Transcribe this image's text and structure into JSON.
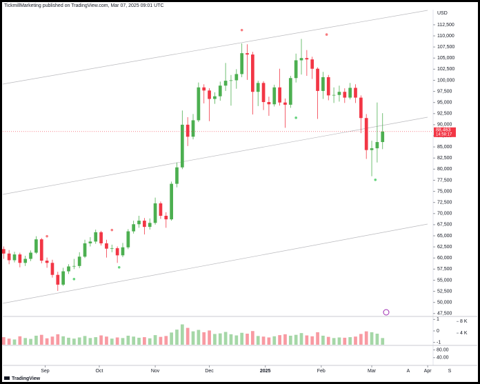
{
  "header": "TickmillMarketing published on TradingView.com, Mar 07, 2025 09:01 UTC",
  "logo": "TradingView",
  "chart_data": {
    "type": "candlestick",
    "currency": "USD",
    "up_color": "#4caf50",
    "down_color": "#f23645",
    "x": [
      -23,
      -20,
      -17,
      -14,
      -11,
      -8,
      -5,
      -2,
      1,
      4,
      7,
      10,
      13,
      16,
      19,
      22,
      25,
      28,
      31,
      34,
      37,
      40,
      43,
      46,
      49,
      52,
      55,
      58,
      61,
      64,
      67,
      70,
      73,
      76,
      79,
      82,
      85,
      88,
      91,
      94,
      97,
      100,
      103,
      106,
      109,
      112,
      115,
      118,
      121,
      124,
      127,
      130,
      133,
      136,
      139,
      142,
      145,
      148,
      151,
      154,
      157,
      160,
      163,
      166,
      169,
      172,
      175,
      178,
      181,
      184,
      187
    ],
    "ohlc": [
      [
        62000,
        62600,
        59800,
        61000
      ],
      [
        61000,
        61800,
        58600,
        59500
      ],
      [
        59500,
        61400,
        59000,
        60800
      ],
      [
        60800,
        61200,
        57900,
        58900
      ],
      [
        58900,
        60500,
        58200,
        59800
      ],
      [
        59800,
        61700,
        59300,
        61200
      ],
      [
        61200,
        64900,
        60900,
        64200
      ],
      [
        64200,
        64500,
        58800,
        59400
      ],
      [
        59400,
        60100,
        57800,
        58900
      ],
      [
        58900,
        59600,
        55600,
        56200
      ],
      [
        56200,
        56900,
        52600,
        54000
      ],
      [
        54000,
        57800,
        53700,
        57000
      ],
      [
        57000,
        58600,
        56400,
        58100
      ],
      [
        58100,
        59800,
        57500,
        58200
      ],
      [
        58200,
        61300,
        57700,
        60300
      ],
      [
        60300,
        64100,
        60000,
        63300
      ],
      [
        63300,
        64700,
        62600,
        63700
      ],
      [
        63700,
        66400,
        63200,
        65800
      ],
      [
        65800,
        66100,
        62800,
        63300
      ],
      [
        63300,
        64100,
        60100,
        62100
      ],
      [
        62100,
        63000,
        61300,
        62200
      ],
      [
        62200,
        62600,
        58900,
        60600
      ],
      [
        60600,
        63400,
        60200,
        62400
      ],
      [
        62400,
        66500,
        62000,
        66000
      ],
      [
        66000,
        68400,
        65500,
        67600
      ],
      [
        67600,
        69500,
        66800,
        68400
      ],
      [
        68400,
        69000,
        65300,
        67000
      ],
      [
        67000,
        68900,
        66400,
        67900
      ],
      [
        67900,
        73600,
        67500,
        72300
      ],
      [
        72300,
        72700,
        68800,
        69500
      ],
      [
        69500,
        70300,
        66800,
        68700
      ],
      [
        68700,
        77200,
        68400,
        76700
      ],
      [
        76700,
        81500,
        75900,
        80400
      ],
      [
        80400,
        93200,
        80000,
        90000
      ],
      [
        90000,
        91700,
        85200,
        87300
      ],
      [
        87300,
        92400,
        86700,
        91000
      ],
      [
        91000,
        99500,
        90600,
        98400
      ],
      [
        98400,
        99100,
        94800,
        97700
      ],
      [
        97700,
        98200,
        90800,
        95800
      ],
      [
        95800,
        97300,
        94700,
        96400
      ],
      [
        96400,
        99700,
        95400,
        98800
      ],
      [
        98800,
        103900,
        97600,
        99900
      ],
      [
        99900,
        101200,
        94300,
        100000
      ],
      [
        100000,
        102500,
        98100,
        101400
      ],
      [
        101400,
        108300,
        100700,
        106100
      ],
      [
        106100,
        108100,
        100100,
        105800
      ],
      [
        105800,
        106400,
        92300,
        97400
      ],
      [
        97400,
        99900,
        94200,
        99400
      ],
      [
        99400,
        99800,
        93300,
        95100
      ],
      [
        95100,
        96300,
        92000,
        94600
      ],
      [
        94600,
        99000,
        94100,
        98400
      ],
      [
        98400,
        102600,
        94300,
        95000
      ],
      [
        95000,
        95900,
        89300,
        94500
      ],
      [
        94500,
        101000,
        93800,
        100500
      ],
      [
        100500,
        106000,
        99500,
        104500
      ],
      [
        104500,
        109300,
        101300,
        105000
      ],
      [
        105000,
        106800,
        101000,
        104700
      ],
      [
        104700,
        105300,
        100300,
        102600
      ],
      [
        102600,
        102900,
        91300,
        97600
      ],
      [
        97600,
        101900,
        95800,
        100700
      ],
      [
        100700,
        101200,
        95500,
        96600
      ],
      [
        96600,
        98400,
        94900,
        96700
      ],
      [
        96700,
        98800,
        95200,
        97400
      ],
      [
        97400,
        98200,
        94900,
        96100
      ],
      [
        96100,
        99400,
        95700,
        98300
      ],
      [
        98300,
        99100,
        94900,
        96100
      ],
      [
        96100,
        96600,
        88100,
        91500
      ],
      [
        91500,
        92400,
        82300,
        84300
      ],
      [
        84300,
        86400,
        78400,
        84700
      ],
      [
        84700,
        95000,
        81500,
        86100
      ],
      [
        86100,
        92600,
        84500,
        88463
      ]
    ],
    "xlim": [
      -23.5,
      215
    ],
    "xticks": [
      {
        "value": 0,
        "label": "Sep"
      },
      {
        "value": 30,
        "label": "Oct"
      },
      {
        "value": 61,
        "label": "Nov"
      },
      {
        "value": 91,
        "label": "Dec"
      },
      {
        "value": 122,
        "label": "2025"
      },
      {
        "value": 153,
        "label": "Feb"
      },
      {
        "value": 181,
        "label": "Mar"
      },
      {
        "value": 212,
        "label": "Apr"
      }
    ],
    "ylim": [
      47000,
      115900
    ],
    "yticks": [
      {
        "value": 112500,
        "label": "112,500"
      },
      {
        "value": 110000,
        "label": "110,000"
      },
      {
        "value": 107500,
        "label": "107,500"
      },
      {
        "value": 105000,
        "label": "105,000"
      },
      {
        "value": 102500,
        "label": "102,500"
      },
      {
        "value": 100000,
        "label": "100,000"
      },
      {
        "value": 97500,
        "label": "97,500"
      },
      {
        "value": 95000,
        "label": "95,000"
      },
      {
        "value": 92500,
        "label": "92,500"
      },
      {
        "value": 90000,
        "label": "90,000"
      },
      {
        "value": 87500,
        "label": "87,500"
      },
      {
        "value": 85000,
        "label": "85,000"
      },
      {
        "value": 82500,
        "label": "82,500"
      },
      {
        "value": 80000,
        "label": "80,000"
      },
      {
        "value": 77500,
        "label": "77,500"
      },
      {
        "value": 75000,
        "label": "75,000"
      },
      {
        "value": 72500,
        "label": "72,500"
      },
      {
        "value": 70000,
        "label": "70,000"
      },
      {
        "value": 67500,
        "label": "67,500"
      },
      {
        "value": 65000,
        "label": "65,000"
      },
      {
        "value": 62500,
        "label": "62,500"
      },
      {
        "value": 60000,
        "label": "60,000"
      },
      {
        "value": 57500,
        "label": "57,500"
      },
      {
        "value": 55000,
        "label": "55,000"
      },
      {
        "value": 52500,
        "label": "52,500"
      },
      {
        "value": 50000,
        "label": "50,000"
      },
      {
        "value": 47500,
        "label": "47,500"
      }
    ],
    "last_price": {
      "value": 88463,
      "label": "88,463"
    },
    "countdown": "14:58:17",
    "fractal_high": {
      "color": "#f77c80",
      "x": [
        1,
        37,
        109,
        156
      ],
      "y": [
        64900,
        66300,
        111300,
        110300
      ]
    },
    "fractal_low": {
      "color": "#66d37e",
      "x": [
        16,
        41,
        139,
        183
      ],
      "y": [
        55250,
        57900,
        91560,
        77600
      ]
    },
    "volume": {
      "values": [
        2600,
        2100,
        1800,
        2900,
        2300,
        2000,
        3100,
        3400,
        2200,
        2800,
        3600,
        2900,
        2400,
        2100,
        2500,
        3000,
        2300,
        2600,
        3200,
        2800,
        2100,
        2500,
        2300,
        3100,
        2800,
        2400,
        2600,
        2200,
        3300,
        2700,
        3000,
        4200,
        5200,
        7000,
        5800,
        4600,
        5100,
        4300,
        4900,
        3700,
        3900,
        4400,
        3600,
        3200,
        4100,
        3800,
        4700,
        3000,
        2800,
        2500,
        2900,
        3300,
        3600,
        3100,
        3400,
        4000,
        3200,
        2900,
        4300,
        3100,
        2700,
        2300,
        2500,
        2400,
        2600,
        2800,
        3700,
        4600,
        4300,
        3800,
        2300
      ],
      "ylim": [
        0,
        9500
      ],
      "yticks": [
        {
          "value": 8000,
          "label": "8 K"
        },
        {
          "value": 4000,
          "label": "4 K"
        }
      ]
    },
    "oscillator": {
      "ylim": [
        -1.2,
        1.2
      ],
      "yticks": [
        1,
        0,
        -1
      ]
    },
    "lower_pane": {
      "ylim": [
        0,
        100
      ],
      "yticks": [
        {
          "value": 80,
          "label": "80.00"
        },
        {
          "value": 40,
          "label": "40.00"
        }
      ]
    },
    "scale_buttons": [
      "A",
      "S"
    ]
  }
}
